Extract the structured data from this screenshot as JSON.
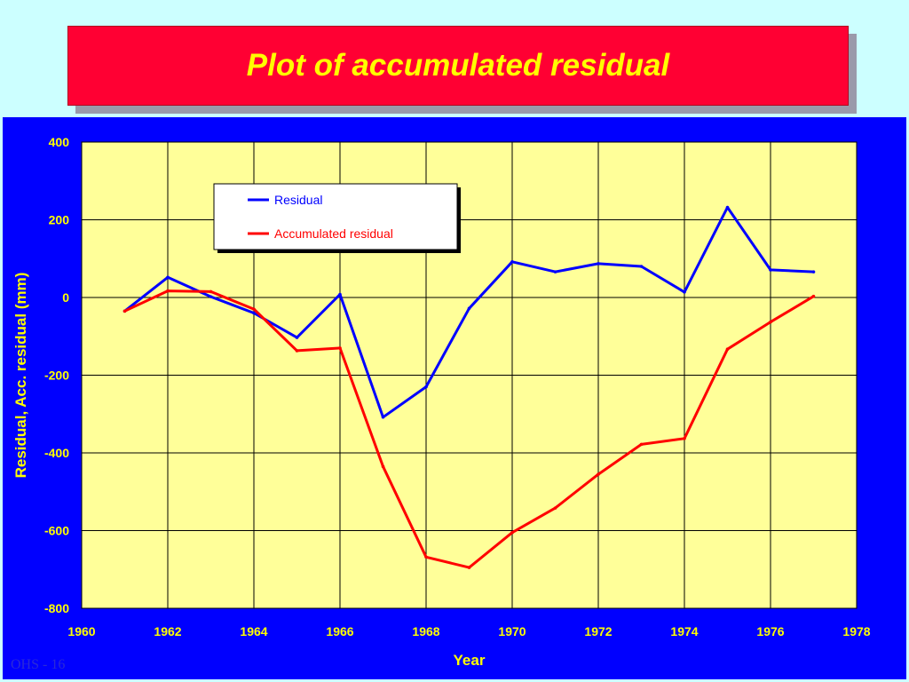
{
  "slide": {
    "title": "Plot of accumulated residual",
    "footer": "OHS - 16"
  },
  "colors": {
    "background": "#ccffff",
    "title_box": "#ff0033",
    "title_text": "#ffff00",
    "chart_panel": "#0000ff",
    "plot_area": "#ffff99",
    "axis_text": "#ffff00",
    "residual_line": "#0000ff",
    "accumulated_line": "#ff0000"
  },
  "chart_data": {
    "type": "line",
    "title": "",
    "xlabel": "Year",
    "ylabel": "Residual, Acc. residual (mm)",
    "xlim": [
      1960,
      1978
    ],
    "ylim": [
      -800,
      400
    ],
    "x_ticks": [
      1960,
      1962,
      1964,
      1966,
      1968,
      1970,
      1972,
      1974,
      1976,
      1978
    ],
    "x_tick_labels": [
      "1960",
      "1962",
      "1964",
      "1966",
      "1968",
      "1970",
      "1972",
      "1974",
      "1976",
      "1978"
    ],
    "y_ticks": [
      400,
      200,
      0,
      -200,
      -400,
      -600,
      -800
    ],
    "y_tick_labels": [
      "400",
      "200",
      "0",
      "-200",
      "-400",
      "-600",
      "-800"
    ],
    "x_gridlines": [
      1962,
      1964,
      1966,
      1968,
      1970,
      1972,
      1974,
      1976
    ],
    "y_gridlines": [
      200,
      0,
      -200,
      -400,
      -600
    ],
    "grid": true,
    "legend_position": "top-left",
    "x": [
      1961,
      1962,
      1963,
      1964,
      1965,
      1966,
      1967,
      1968,
      1969,
      1970,
      1971,
      1972,
      1973,
      1974,
      1975,
      1976,
      1977
    ],
    "series": [
      {
        "name": "Residual",
        "color": "#0000ff",
        "values": [
          -35,
          52,
          2,
          -40,
          -103,
          8,
          -308,
          -230,
          -28,
          92,
          66,
          87,
          80,
          14,
          232,
          71,
          66
        ]
      },
      {
        "name": "Accumulated residual",
        "color": "#ff0000",
        "values": [
          -35,
          17,
          15,
          -30,
          -137,
          -130,
          -435,
          -668,
          -695,
          -605,
          -542,
          -455,
          -378,
          -363,
          -133,
          -63,
          3
        ]
      }
    ]
  }
}
